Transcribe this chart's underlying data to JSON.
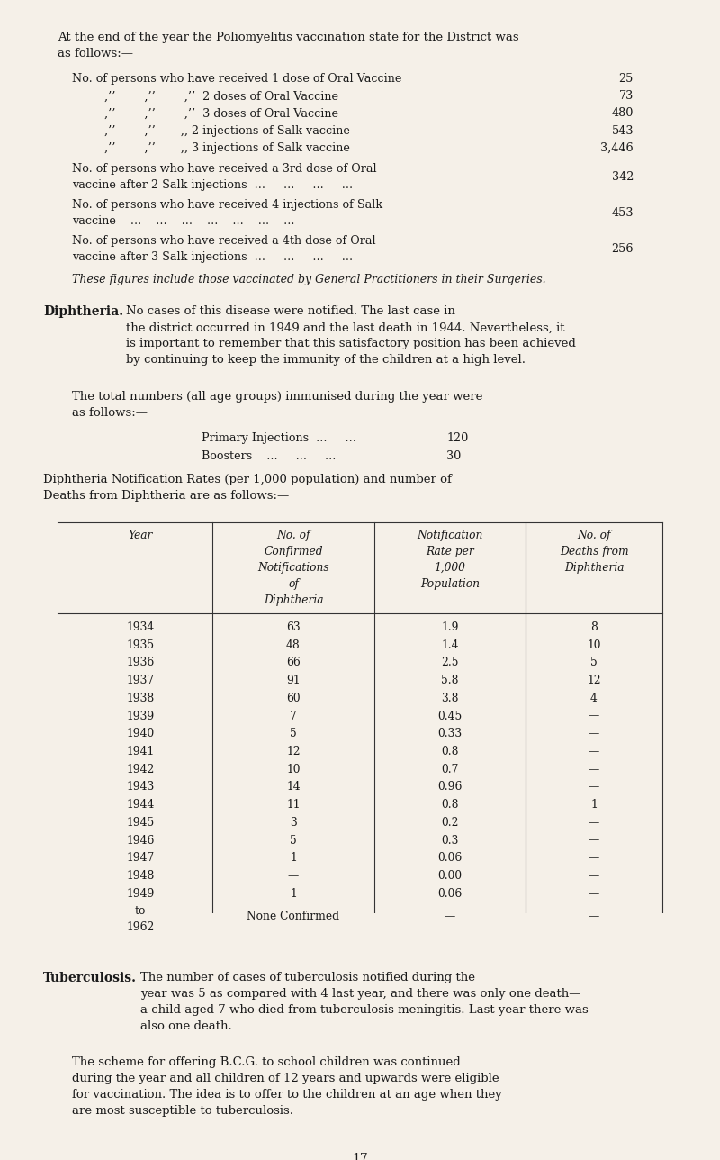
{
  "bg_color": "#f5f0e8",
  "text_color": "#1a1a1a",
  "page_width": 8.0,
  "page_height": 12.88,
  "font_family": "serif",
  "top_para": "At the end of the year the Poliomyelitis vaccination state for the District was\nas follows:—",
  "polio_lines": [
    {
      "indent": 0.55,
      "text": "No. of persons who have received 1 dose of Oral Vaccine",
      "value": "25"
    },
    {
      "indent": 1.05,
      "text": "„„       „„       „„  2 doses of Oral Vaccine",
      "value": "73"
    },
    {
      "indent": 1.05,
      "text": "„„       „„       „„  3 doses of Oral Vaccine",
      "value": "480"
    },
    {
      "indent": 1.05,
      "text": "„„       „„       „„ 2 injections of Salk vaccine",
      "value": "543"
    },
    {
      "indent": 1.05,
      "text": "„„       „„       „„ 3 injections of Salk vaccine",
      "value": "3,446"
    }
  ],
  "polio_block_lines": [
    {
      "text": "No. of persons who have received a 3rd dose of Oral\nvaccine after 2 Salk injections  ...     ...     ...     ...",
      "value": "342"
    },
    {
      "text": "No. of persons who have received 4 injections of Salk\nvaccine    ...    ...    ...    ...    ...    ...    ...",
      "value": "453"
    },
    {
      "text": "No. of persons who have received a 4th dose of Oral\nvaccine after 3 Salk injections  ...     ...     ...     ...",
      "value": "256"
    }
  ],
  "italic_note": "These figures include those vaccinated by General Practitioners in their Surgeries.",
  "diphtheria_bold": "Diphtheria.",
  "diphtheria_para1": " No cases of this disease were notified. The last case in\nthe district occurred in 1949 and the last death in 1944. Nevertheless, it\nis important to remember that this satisfactory position has been achieved\nby continuing to keep the immunity of the children at a high level.",
  "diphtheria_para2": "The total numbers (all age groups) immunised during the year were\nas follows:—",
  "injection_lines": [
    {
      "label": "Primary Injections  ...     ...   120"
    },
    {
      "label": "Boosters    ...     ...     ...    30"
    }
  ],
  "diphtheria_para3": "Diphtheria Notification Rates (per 1,000 population) and number of\nDeaths from Diphtheria are as follows:—",
  "table_headers": [
    "Year",
    "No. of\nConfirmed\nNotifications\nof\nDiphtheria",
    "Notification\nRate per\n1,000\nPopulation",
    "No. of\nDeaths from\nDiphtheria"
  ],
  "table_data": [
    [
      "1934",
      "63",
      "1.9",
      "8"
    ],
    [
      "1935",
      "48",
      "1.4",
      "10"
    ],
    [
      "1936",
      "66",
      "2.5",
      "5"
    ],
    [
      "1937",
      "91",
      "5.8",
      "12"
    ],
    [
      "1938",
      "60",
      "3.8",
      "4"
    ],
    [
      "1939",
      "7",
      "0.45",
      "—"
    ],
    [
      "1940",
      "5",
      "0.33",
      "—"
    ],
    [
      "1941",
      "12",
      "0.8",
      "—"
    ],
    [
      "1942",
      "10",
      "0.7",
      "—"
    ],
    [
      "1943",
      "14",
      "0.96",
      "—"
    ],
    [
      "1944",
      "11",
      "0.8",
      "1"
    ],
    [
      "1945",
      "3",
      "0.2",
      "—"
    ],
    [
      "1946",
      "5",
      "0.3",
      "—"
    ],
    [
      "1947",
      "1",
      "0.06",
      "—"
    ],
    [
      "1948",
      "—",
      "0.00",
      "—"
    ],
    [
      "1949",
      "1",
      "0.06",
      "—"
    ],
    [
      "to\n1962",
      "None Confirmed",
      "—",
      "—"
    ]
  ],
  "tuberculosis_bold": "Tuberculosis.",
  "tuberculosis_para1": " The number of cases of tuberculosis notified during the\nyear was 5 as compared with 4 last year, and there was only one death—\na child aged 7 who died from tuberculosis meningitis. Last year there was\nalso one death.",
  "tuberculosis_para2": "The scheme for offering B.C.G. to school children was continued\nduring the year and all children of 12 years and upwards were eligible\nfor vaccination. The idea is to offer to the children at an age when they\nare most susceptible to tuberculosis.",
  "page_number": "17"
}
